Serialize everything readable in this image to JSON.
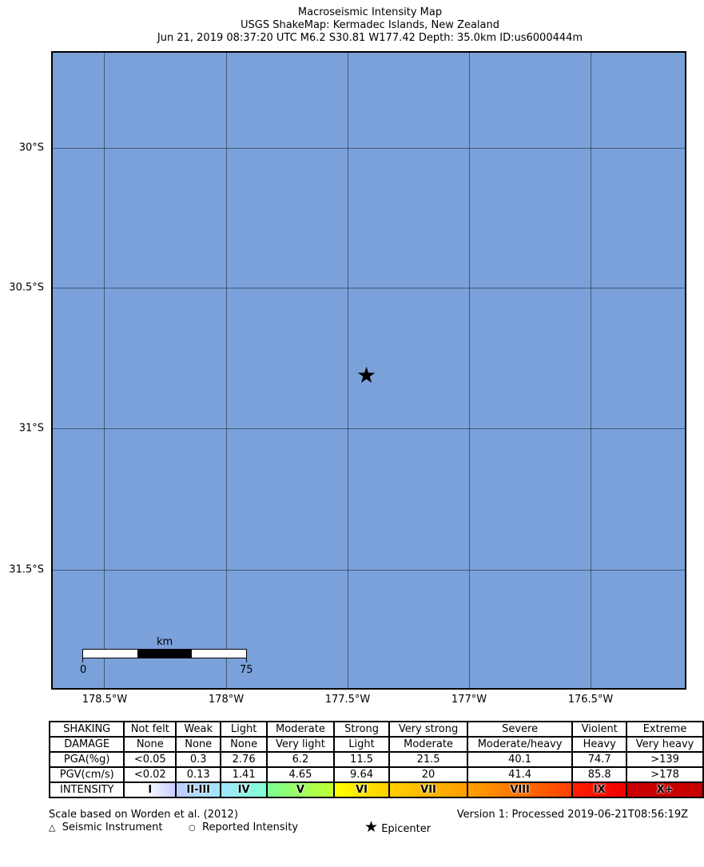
{
  "title": {
    "line1": "Macroseismic Intensity Map",
    "line2": "USGS ShakeMap: Kermadec Islands, New Zealand",
    "line3": "Jun 21, 2019 08:37:20 UTC M6.2 S30.81 W177.42 Depth: 35.0km ID:us6000444m"
  },
  "map": {
    "ocean_color": "#7ba1da",
    "lat_labels": [
      "30°S",
      "30.5°S",
      "31°S",
      "31.5°S"
    ],
    "lon_labels": [
      "178.5°W",
      "178°W",
      "177.5°W",
      "177°W",
      "176.5°W"
    ],
    "epicenter": {
      "lat": -30.81,
      "lon": -177.42,
      "icon": "star-icon"
    },
    "scalebar": {
      "unit": "km",
      "start": "0",
      "end": "75"
    }
  },
  "legend": {
    "rows": [
      [
        "SHAKING",
        "Not felt",
        "Weak",
        "Light",
        "Moderate",
        "Strong",
        "Very strong",
        "Severe",
        "Violent",
        "Extreme"
      ],
      [
        "DAMAGE",
        "None",
        "None",
        "None",
        "Very light",
        "Light",
        "Moderate",
        "Moderate/heavy",
        "Heavy",
        "Very heavy"
      ],
      [
        "PGA(%g)",
        "<0.05",
        "0.3",
        "2.76",
        "6.2",
        "11.5",
        "21.5",
        "40.1",
        "74.7",
        ">139"
      ],
      [
        "PGV(cm/s)",
        "<0.02",
        "0.13",
        "1.41",
        "4.65",
        "9.64",
        "20",
        "41.4",
        "85.8",
        ">178"
      ],
      [
        "INTENSITY",
        "I",
        "II-III",
        "IV",
        "V",
        "VI",
        "VII",
        "VIII",
        "IX",
        "X+"
      ]
    ],
    "intensity_colors": [
      "linear-gradient(90deg,#fff 40%,#c8cdff)",
      "linear-gradient(90deg,#bfccff,#a0e6ff)",
      "linear-gradient(90deg,#a0e6ff,#80ffd0)",
      "linear-gradient(90deg,#7aff93,#c0ff30)",
      "linear-gradient(90deg,#ffff00,#ffd000)",
      "linear-gradient(90deg,#ffd000,#ff9c00)",
      "linear-gradient(90deg,#ffa000,#ff4000)",
      "linear-gradient(90deg,#ff2000,#f00000)",
      "#c80000"
    ],
    "scale_note": "Scale based on Worden et al. (2012)",
    "version": "Version 1: Processed 2019-06-21T08:56:19Z",
    "symbols": {
      "instrument": "Seismic Instrument",
      "reported": "Reported Intensity",
      "epicenter": "Epicenter"
    }
  }
}
